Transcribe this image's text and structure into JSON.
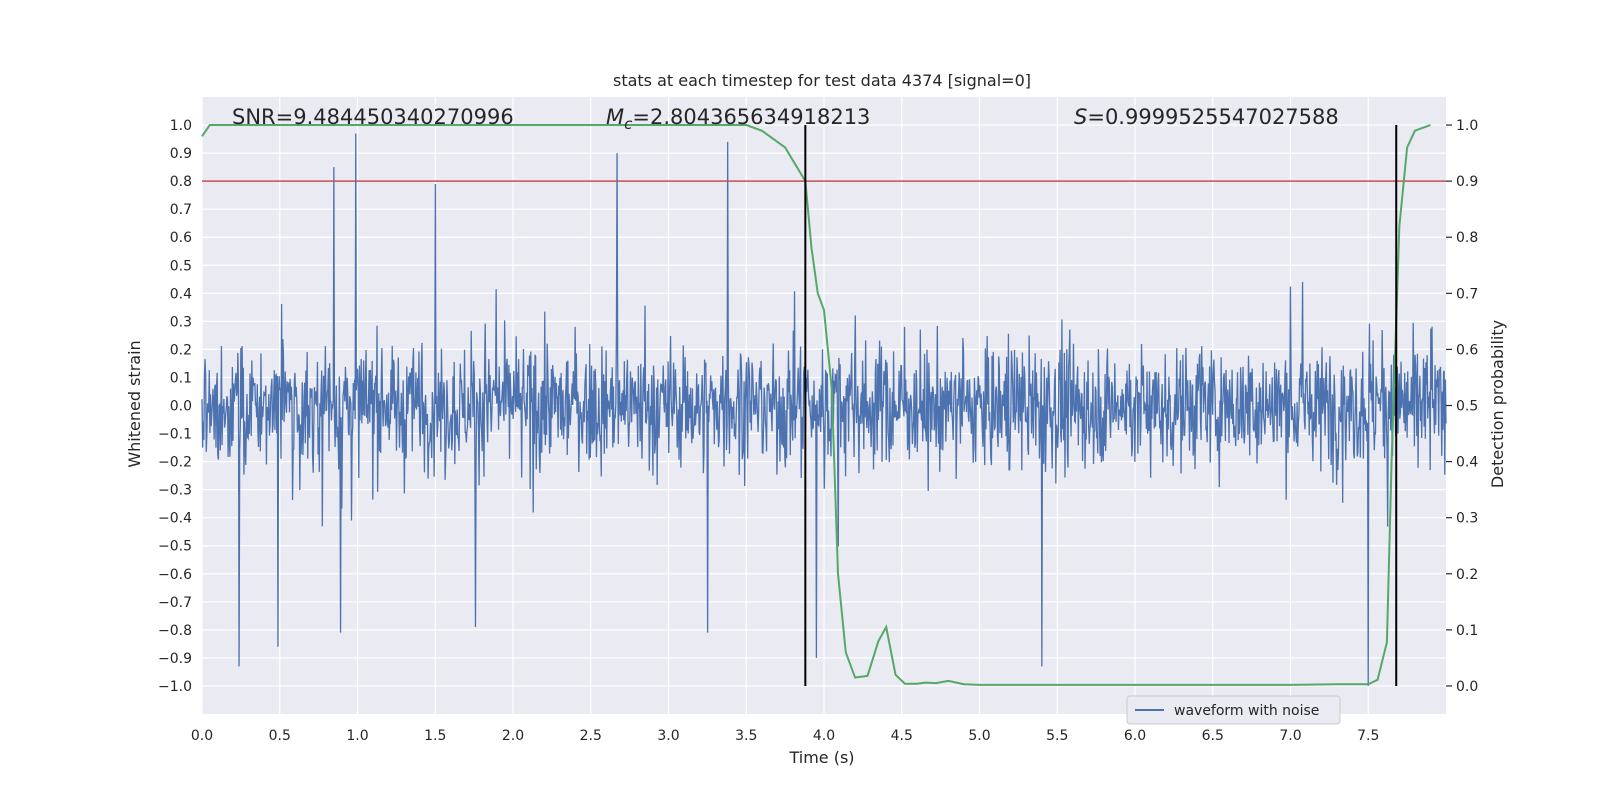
{
  "chart_data": {
    "type": "line",
    "title": "stats at each timestep for test data 4374 [signal=0]",
    "xlabel": "Time (s)",
    "ylabel_left": "Whitened strain",
    "ylabel_right": "Detection probability",
    "xlim": [
      0.0,
      8.0
    ],
    "ylim_left": [
      -1.1,
      1.1
    ],
    "ylim_right": [
      -0.05,
      1.05
    ],
    "x_ticks": [
      "0.0",
      "0.5",
      "1.0",
      "1.5",
      "2.0",
      "2.5",
      "3.0",
      "3.5",
      "4.0",
      "4.5",
      "5.0",
      "5.5",
      "6.0",
      "6.5",
      "7.0",
      "7.5"
    ],
    "y_ticks_left": [
      "1.0",
      "0.9",
      "0.8",
      "0.7",
      "0.6",
      "0.5",
      "0.4",
      "0.3",
      "0.2",
      "0.1",
      "0.0",
      "−0.1",
      "−0.2",
      "−0.3",
      "−0.4",
      "−0.5",
      "−0.6",
      "−0.7",
      "−0.8",
      "−0.9",
      "−1.0"
    ],
    "y_ticks_right": [
      "1.0",
      "0.9",
      "0.8",
      "0.7",
      "0.6",
      "0.5",
      "0.4",
      "0.3",
      "0.2",
      "0.1",
      "0.0"
    ],
    "grid": true,
    "legend_position": "lower-right",
    "annotations": {
      "snr": "SNR=9.484450340270996",
      "mc_symbol": "M",
      "mc_sub": "c",
      "mc_value": "=2.804365634918213",
      "s_symbol": "S",
      "s_value": "=0.9999525547027588"
    },
    "threshold": {
      "axis": "right",
      "value": 0.9,
      "color": "#c44e52"
    },
    "vlines": {
      "x": [
        3.88,
        7.68
      ],
      "color": "#000000"
    },
    "series": [
      {
        "name": "waveform with noise",
        "axis": "left",
        "color": "#4c72b0",
        "kind": "noise",
        "samples": 2048,
        "envelope": 0.42,
        "spike_peaks": [
          [
            0.85,
            0.85
          ],
          [
            0.99,
            0.97
          ],
          [
            1.5,
            0.79
          ],
          [
            2.67,
            0.9
          ],
          [
            3.38,
            0.94
          ],
          [
            0.24,
            -0.93
          ],
          [
            0.49,
            -0.86
          ],
          [
            0.89,
            -0.81
          ],
          [
            1.76,
            -0.79
          ],
          [
            3.25,
            -0.81
          ],
          [
            3.95,
            -0.9
          ],
          [
            5.4,
            -0.93
          ],
          [
            7.5,
            -1.0
          ]
        ]
      },
      {
        "name": "",
        "axis": "right",
        "color": "#55a868",
        "kind": "line",
        "x": [
          0.0,
          0.05,
          0.1,
          0.5,
          1.0,
          2.0,
          3.0,
          3.5,
          3.6,
          3.75,
          3.88,
          3.92,
          3.96,
          4.0,
          4.05,
          4.09,
          4.14,
          4.2,
          4.28,
          4.35,
          4.4,
          4.46,
          4.52,
          4.6,
          4.65,
          4.72,
          4.8,
          4.9,
          5.0,
          5.5,
          6.0,
          6.5,
          7.0,
          7.3,
          7.5,
          7.56,
          7.62,
          7.65,
          7.7,
          7.75,
          7.8,
          7.9
        ],
        "y": [
          0.98,
          1.0,
          1.0,
          1.0,
          1.0,
          1.0,
          1.0,
          1.0,
          0.99,
          0.96,
          0.9,
          0.78,
          0.7,
          0.67,
          0.53,
          0.2,
          0.06,
          0.015,
          0.018,
          0.08,
          0.105,
          0.02,
          0.004,
          0.004,
          0.006,
          0.005,
          0.009,
          0.003,
          0.002,
          0.002,
          0.002,
          0.002,
          0.002,
          0.003,
          0.003,
          0.011,
          0.078,
          0.4,
          0.82,
          0.96,
          0.99,
          1.0
        ]
      }
    ]
  }
}
